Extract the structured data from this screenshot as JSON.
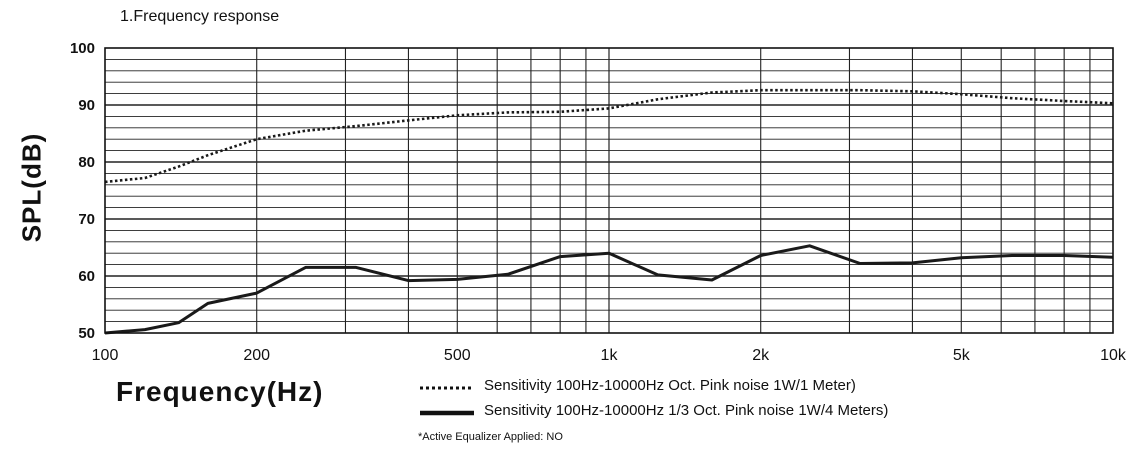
{
  "chart_data": {
    "type": "line",
    "title": "1.Frequency response",
    "xlabel": "Frequency(Hz)",
    "ylabel": "SPL(dB)",
    "xscale": "log",
    "xlim": [
      100,
      10000
    ],
    "ylim": [
      50,
      100
    ],
    "grid": true,
    "x_ticks": [
      {
        "value": 100,
        "label": "100"
      },
      {
        "value": 200,
        "label": "200"
      },
      {
        "value": 500,
        "label": "500"
      },
      {
        "value": 1000,
        "label": "1k"
      },
      {
        "value": 2000,
        "label": "2k"
      },
      {
        "value": 5000,
        "label": "5k"
      },
      {
        "value": 10000,
        "label": "10k"
      }
    ],
    "y_ticks": [
      {
        "value": 50,
        "label": "50"
      },
      {
        "value": 60,
        "label": "60"
      },
      {
        "value": 70,
        "label": "70"
      },
      {
        "value": 80,
        "label": "80"
      },
      {
        "value": 90,
        "label": "90"
      },
      {
        "value": 100,
        "label": "100"
      }
    ],
    "series": [
      {
        "name": "Sensitivity 100Hz-10000Hz Oct. Pink noise 1W/1 Meter)",
        "style": "dotted",
        "color": "#1a1a1a",
        "x": [
          100,
          120,
          140,
          160,
          200,
          250,
          315,
          400,
          500,
          630,
          800,
          1000,
          1250,
          1600,
          2000,
          2500,
          3150,
          4000,
          5000,
          6300,
          8000,
          10000
        ],
        "y": [
          76.5,
          77.2,
          79.2,
          81.2,
          84.0,
          85.5,
          86.3,
          87.3,
          88.2,
          88.7,
          88.8,
          89.4,
          91.0,
          92.2,
          92.6,
          92.6,
          92.6,
          92.4,
          91.9,
          91.2,
          90.7,
          90.3
        ]
      },
      {
        "name": "Sensitivity 100Hz-10000Hz 1/3 Oct. Pink noise 1W/4 Meters)",
        "style": "solid",
        "color": "#1a1a1a",
        "x": [
          100,
          120,
          140,
          160,
          200,
          250,
          315,
          400,
          500,
          630,
          800,
          1000,
          1250,
          1600,
          2000,
          2500,
          3150,
          4000,
          5000,
          6300,
          8000,
          10000
        ],
        "y": [
          50.0,
          50.6,
          51.8,
          55.2,
          57.0,
          61.5,
          61.5,
          59.2,
          59.4,
          60.3,
          63.4,
          64.0,
          60.2,
          59.3,
          63.6,
          65.3,
          62.2,
          62.3,
          63.2,
          63.6,
          63.6,
          63.3
        ]
      }
    ],
    "footnote": "*Active Equalizer Applied: NO"
  }
}
